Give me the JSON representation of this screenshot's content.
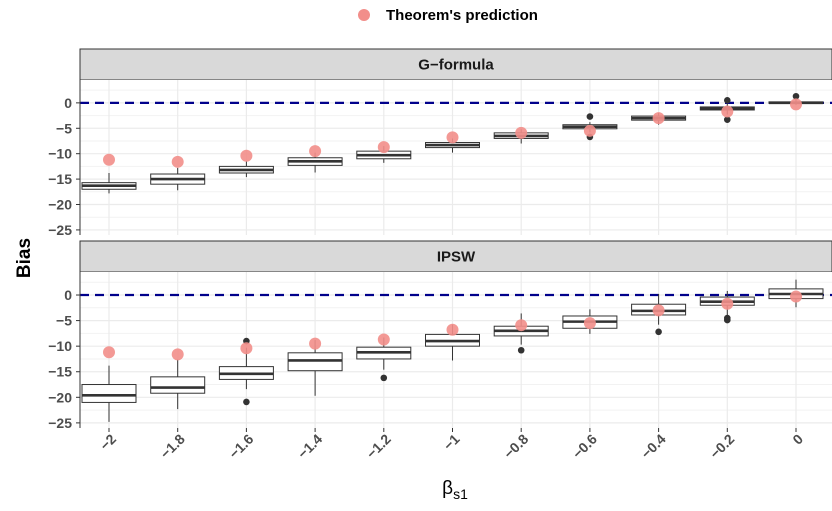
{
  "legend": {
    "label": "Theorem's prediction"
  },
  "axes": {
    "ylabel": "Bias"
  },
  "colors": {
    "prediction": "#f28e8a",
    "reference_line": "#00008b",
    "box_fill": "#ffffff",
    "box_stroke": "#333333",
    "panel_bg": "#ffffff",
    "strip_bg": "#d9d9d9",
    "grid": "#ebebeb",
    "outlier": "#333333"
  },
  "chart_data": {
    "type": "box",
    "xlabel": {
      "main": "β",
      "sub": "s1"
    },
    "ylabel": "Bias",
    "x_ticks": [
      "-2",
      "-1.8",
      "-1.6",
      "-1.4",
      "-1.2",
      "-1",
      "-0.8",
      "-0.6",
      "-0.4",
      "-0.2",
      "0"
    ],
    "y_ticks": [
      0,
      -5,
      -10,
      -15,
      -20,
      -25
    ],
    "ylim": [
      -26,
      4.5
    ],
    "reference_line": 0,
    "grid": true,
    "legend_position": "top",
    "panels": [
      {
        "title": "G−formula",
        "boxes": [
          {
            "x": "-2",
            "q1": -17.0,
            "median": -16.3,
            "q3": -15.7,
            "whisker_low": -17.8,
            "whisker_high": -13.8,
            "outliers": []
          },
          {
            "x": "-1.8",
            "q1": -16.0,
            "median": -15.0,
            "q3": -14.0,
            "whisker_low": -17.2,
            "whisker_high": -12.8,
            "outliers": []
          },
          {
            "x": "-1.6",
            "q1": -13.8,
            "median": -13.2,
            "q3": -12.5,
            "whisker_low": -14.6,
            "whisker_high": -11.5,
            "outliers": []
          },
          {
            "x": "-1.4",
            "q1": -12.3,
            "median": -11.5,
            "q3": -10.8,
            "whisker_low": -13.7,
            "whisker_high": -9.8,
            "outliers": []
          },
          {
            "x": "-1.2",
            "q1": -11.0,
            "median": -10.3,
            "q3": -9.5,
            "whisker_low": -11.8,
            "whisker_high": -8.5,
            "outliers": []
          },
          {
            "x": "-1",
            "q1": -8.8,
            "median": -8.3,
            "q3": -7.8,
            "whisker_low": -9.8,
            "whisker_high": -7.0,
            "outliers": []
          },
          {
            "x": "-0.8",
            "q1": -7.0,
            "median": -6.5,
            "q3": -5.9,
            "whisker_low": -8.0,
            "whisker_high": -5.2,
            "outliers": []
          },
          {
            "x": "-0.6",
            "q1": -5.1,
            "median": -4.7,
            "q3": -4.3,
            "whisker_low": -5.8,
            "whisker_high": -3.8,
            "outliers": [
              -6.7,
              -2.7
            ]
          },
          {
            "x": "-0.4",
            "q1": -3.4,
            "median": -3.0,
            "q3": -2.6,
            "whisker_low": -4.3,
            "whisker_high": -2.0,
            "outliers": []
          },
          {
            "x": "-0.2",
            "q1": -1.4,
            "median": -1.1,
            "q3": -0.8,
            "whisker_low": -2.3,
            "whisker_high": -0.2,
            "outliers": [
              -3.3,
              0.5
            ]
          },
          {
            "x": "0",
            "q1": -0.1,
            "median": 0.0,
            "q3": 0.2,
            "whisker_low": -0.4,
            "whisker_high": 0.7,
            "outliers": [
              1.3
            ]
          }
        ]
      },
      {
        "title": "IPSW",
        "boxes": [
          {
            "x": "-2",
            "q1": -21.0,
            "median": -19.6,
            "q3": -17.5,
            "whisker_low": -24.8,
            "whisker_high": -13.8,
            "outliers": []
          },
          {
            "x": "-1.8",
            "q1": -19.2,
            "median": -18.1,
            "q3": -16.0,
            "whisker_low": -22.3,
            "whisker_high": -12.6,
            "outliers": []
          },
          {
            "x": "-1.6",
            "q1": -16.5,
            "median": -15.4,
            "q3": -14.0,
            "whisker_low": -18.4,
            "whisker_high": -10.3,
            "outliers": [
              -20.9,
              -9.0
            ]
          },
          {
            "x": "-1.4",
            "q1": -14.8,
            "median": -12.8,
            "q3": -11.3,
            "whisker_low": -19.7,
            "whisker_high": -8.8,
            "outliers": []
          },
          {
            "x": "-1.2",
            "q1": -12.5,
            "median": -11.2,
            "q3": -10.2,
            "whisker_low": -14.6,
            "whisker_high": -8.3,
            "outliers": [
              -16.2
            ]
          },
          {
            "x": "-1",
            "q1": -10.0,
            "median": -9.0,
            "q3": -7.7,
            "whisker_low": -12.8,
            "whisker_high": -5.8,
            "outliers": []
          },
          {
            "x": "-0.8",
            "q1": -8.0,
            "median": -7.0,
            "q3": -6.1,
            "whisker_low": -9.7,
            "whisker_high": -3.6,
            "outliers": [
              -10.8
            ]
          },
          {
            "x": "-0.6",
            "q1": -6.5,
            "median": -5.2,
            "q3": -4.1,
            "whisker_low": -7.6,
            "whisker_high": -2.8,
            "outliers": []
          },
          {
            "x": "-0.4",
            "q1": -3.9,
            "median": -3.1,
            "q3": -1.8,
            "whisker_low": -5.8,
            "whisker_high": 0.2,
            "outliers": [
              -7.2
            ]
          },
          {
            "x": "-0.2",
            "q1": -2.0,
            "median": -1.3,
            "q3": -0.4,
            "whisker_low": -4.1,
            "whisker_high": 0.8,
            "outliers": [
              -4.9,
              -4.5
            ]
          },
          {
            "x": "0",
            "q1": -0.7,
            "median": 0.2,
            "q3": 1.2,
            "whisker_low": -2.4,
            "whisker_high": 3.0,
            "outliers": []
          }
        ]
      }
    ],
    "prediction": [
      {
        "x": "-2",
        "y": -11.2
      },
      {
        "x": "-1.8",
        "y": -11.6
      },
      {
        "x": "-1.6",
        "y": -10.4
      },
      {
        "x": "-1.4",
        "y": -9.5
      },
      {
        "x": "-1.2",
        "y": -8.7
      },
      {
        "x": "-1",
        "y": -6.8
      },
      {
        "x": "-0.8",
        "y": -5.9
      },
      {
        "x": "-0.6",
        "y": -5.5
      },
      {
        "x": "-0.4",
        "y": -3.0
      },
      {
        "x": "-0.2",
        "y": -1.7
      },
      {
        "x": "0",
        "y": -0.3
      }
    ]
  }
}
